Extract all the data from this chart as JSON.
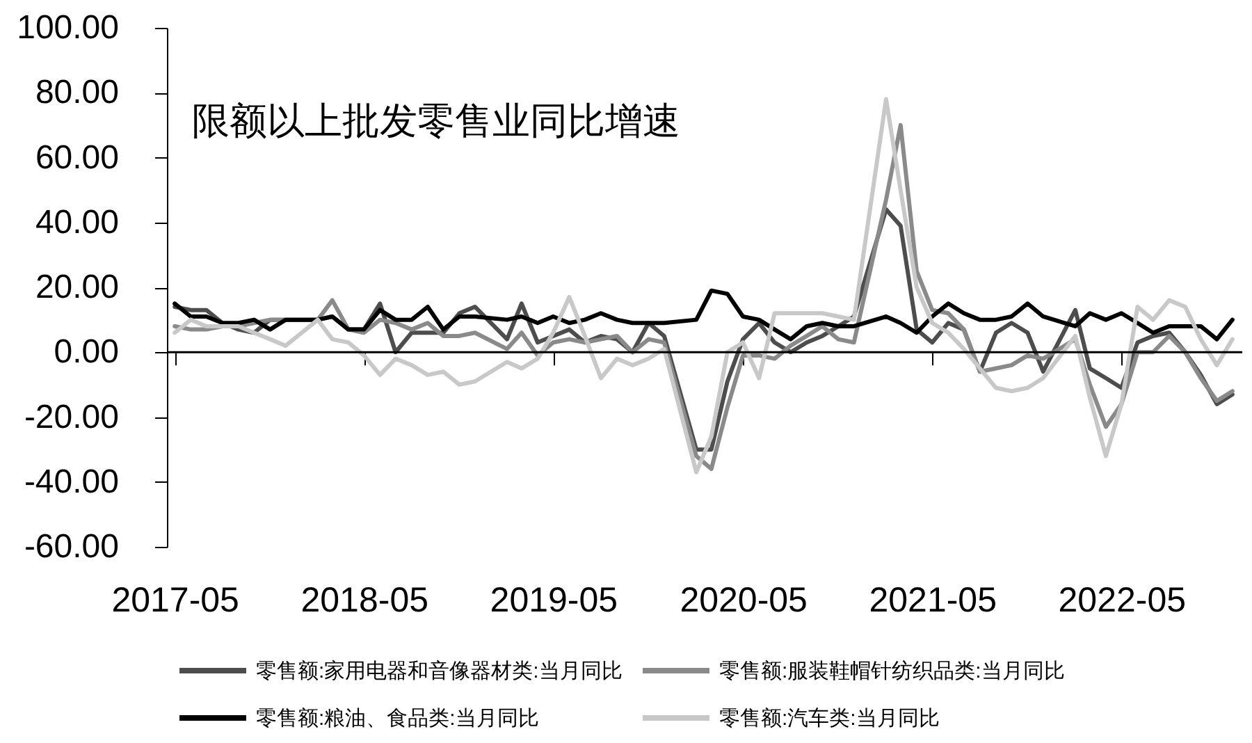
{
  "chart_data": {
    "type": "line",
    "title": "限额以上批发零售业同比增速",
    "x": [
      "2017-05",
      "2017-06",
      "2017-07",
      "2017-08",
      "2017-09",
      "2017-10",
      "2017-11",
      "2017-12",
      "2018-02",
      "2018-03",
      "2018-04",
      "2018-05",
      "2018-06",
      "2018-07",
      "2018-08",
      "2018-09",
      "2018-10",
      "2018-11",
      "2018-12",
      "2019-02",
      "2019-03",
      "2019-04",
      "2019-05",
      "2019-06",
      "2019-07",
      "2019-08",
      "2019-09",
      "2019-10",
      "2019-11",
      "2019-12",
      "2020-02",
      "2020-03",
      "2020-04",
      "2020-05",
      "2020-06",
      "2020-07",
      "2020-08",
      "2020-09",
      "2020-10",
      "2020-11",
      "2020-12",
      "2021-02",
      "2021-03",
      "2021-04",
      "2021-05",
      "2021-06",
      "2021-07",
      "2021-08",
      "2021-09",
      "2021-10",
      "2021-11",
      "2021-12",
      "2022-02",
      "2022-03",
      "2022-04",
      "2022-05",
      "2022-06",
      "2022-07",
      "2022-08",
      "2022-09",
      "2022-10",
      "2022-11",
      "2022-12"
    ],
    "series": [
      {
        "name": "零售额:家用电器和音像器材类:当月同比",
        "color": "#4d4d4d",
        "values": [
          14,
          13,
          13,
          9,
          7,
          6,
          10,
          10,
          10,
          11,
          7,
          7,
          15,
          0,
          6,
          6,
          6,
          12,
          14,
          4,
          15,
          3,
          5,
          7,
          3,
          5,
          4,
          0,
          9,
          5,
          -30,
          -30,
          -9,
          4,
          9,
          3,
          0,
          3,
          5,
          8,
          11,
          44,
          39,
          7,
          3,
          9,
          7,
          -6,
          6,
          9,
          6,
          -6,
          13,
          -5,
          -8,
          -11,
          3,
          5,
          6,
          0,
          -7,
          -16,
          -13
        ]
      },
      {
        "name": "零售额:服装鞋帽针纺织品类:当月同比",
        "color": "#8a8a8a",
        "values": [
          8,
          7,
          7,
          8,
          8,
          9,
          10,
          10,
          10,
          16,
          7,
          6,
          10,
          9,
          7,
          9,
          5,
          5,
          6,
          1,
          6,
          -1,
          3,
          4,
          3,
          4,
          5,
          0,
          4,
          3,
          -32,
          -36,
          -17,
          -1,
          -1,
          -2,
          2,
          5,
          8,
          4,
          3,
          47,
          70,
          25,
          13,
          12,
          7,
          -6,
          -5,
          -4,
          -1,
          -2,
          4,
          -10,
          -23,
          -16,
          0,
          0,
          5,
          0,
          -8,
          -15,
          -12
        ]
      },
      {
        "name": "零售额:粮油、食品类:当月同比",
        "color": "#000000",
        "values": [
          15,
          11,
          11,
          9,
          9,
          10,
          7,
          10,
          10,
          11,
          7,
          7,
          13,
          10,
          10,
          14,
          7,
          11,
          11,
          10,
          11,
          9,
          11,
          9,
          10,
          12,
          10,
          9,
          9,
          9,
          10,
          19,
          18,
          11,
          10,
          7,
          4,
          8,
          9,
          8,
          8,
          11,
          9,
          6,
          11,
          15,
          12,
          10,
          10,
          11,
          15,
          11,
          8,
          12,
          10,
          12,
          9,
          6,
          8,
          8,
          8,
          4,
          10
        ]
      },
      {
        "name": "零售额:汽车类:当月同比",
        "color": "#c8c8c8",
        "values": [
          6,
          10,
          8,
          8,
          8,
          6,
          4,
          2,
          10,
          4,
          3,
          -1,
          -7,
          -2,
          -4,
          -7,
          -6,
          -10,
          -9,
          -3,
          -5,
          -2,
          6,
          17,
          5,
          -8,
          -2,
          -4,
          -2,
          1,
          -37,
          -26,
          0,
          3,
          -8,
          12,
          12,
          12,
          12,
          11,
          10,
          78,
          50,
          20,
          9,
          6,
          1,
          -5,
          -11,
          -12,
          -11,
          -8,
          5,
          -14,
          -32,
          -16,
          14,
          10,
          16,
          14,
          4,
          -4,
          4
        ]
      }
    ],
    "xlim": [
      "2017-04-16",
      "2022-12-20"
    ],
    "xticks": [
      "2017-05",
      "2018-05",
      "2019-05",
      "2020-05",
      "2021-05",
      "2022-05"
    ],
    "ylim": [
      -60,
      100
    ],
    "yticks": [
      {
        "value": -60,
        "label": "-60.00"
      },
      {
        "value": -40,
        "label": "-40.00"
      },
      {
        "value": -20,
        "label": "-20.00"
      },
      {
        "value": 0,
        "label": "0.00"
      },
      {
        "value": 20,
        "label": "20.00"
      },
      {
        "value": 40,
        "label": "40.00"
      },
      {
        "value": 60,
        "label": "60.00"
      },
      {
        "value": 80,
        "label": "80.00"
      },
      {
        "value": 100,
        "label": "100.00"
      }
    ],
    "ref_lines": [
      {
        "axis": "y",
        "value": 0,
        "color": "#000000"
      }
    ],
    "grid": false,
    "legend": "bottom",
    "line_style": "solid"
  }
}
